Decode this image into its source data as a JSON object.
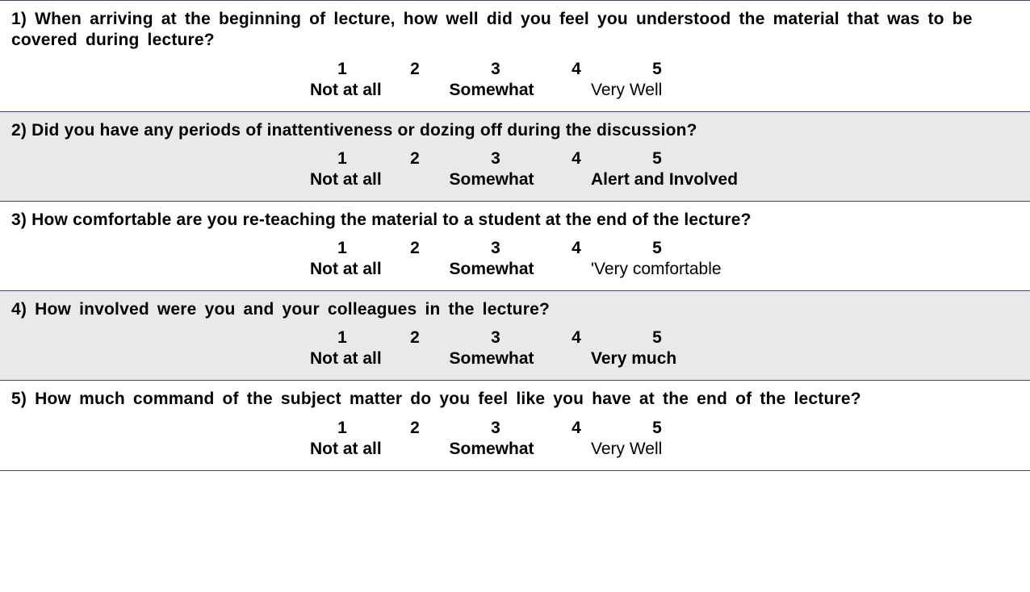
{
  "colors": {
    "border": "#4b3a6b",
    "shaded_bg": "#e9e9ea",
    "plain_bg": "#ffffff",
    "text": "#000000"
  },
  "typography": {
    "font_family": "Arial",
    "question_fontsize_pt": 16,
    "question_weight": "bold",
    "scale_fontsize_pt": 16
  },
  "scale_numbers": [
    "1",
    "2",
    "3",
    "4",
    "5"
  ],
  "questions": [
    {
      "text": "1) When arriving at the beginning of lecture, how well did you feel you understood the material that was to be covered during lecture?",
      "low": "Not at all",
      "mid": "Somewhat",
      "high": "Very Well",
      "high_bold": false,
      "shaded": false,
      "loose": true
    },
    {
      "text": "2) Did you have any periods of inattentiveness or dozing off during the discussion?",
      "low": "Not at all",
      "mid": "Somewhat",
      "high": "Alert and Involved",
      "high_bold": true,
      "shaded": true,
      "loose": false
    },
    {
      "text": "3) How comfortable are you re-teaching the material to a student at the end of the lecture?",
      "low": "Not at all",
      "mid": "Somewhat",
      "high": "'Very comfortable",
      "high_bold": false,
      "shaded": false,
      "loose": false
    },
    {
      "text": "4) How involved were you and your colleagues in the lecture?",
      "low": "Not at all",
      "mid": "Somewhat",
      "high": "Very much",
      "high_bold": true,
      "shaded": true,
      "loose": true
    },
    {
      "text": "5) How much command of the subject matter do you feel like you have at the end of the lecture?",
      "low": "Not at all",
      "mid": "Somewhat",
      "high": "Very Well",
      "high_bold": false,
      "shaded": false,
      "loose": true
    }
  ]
}
